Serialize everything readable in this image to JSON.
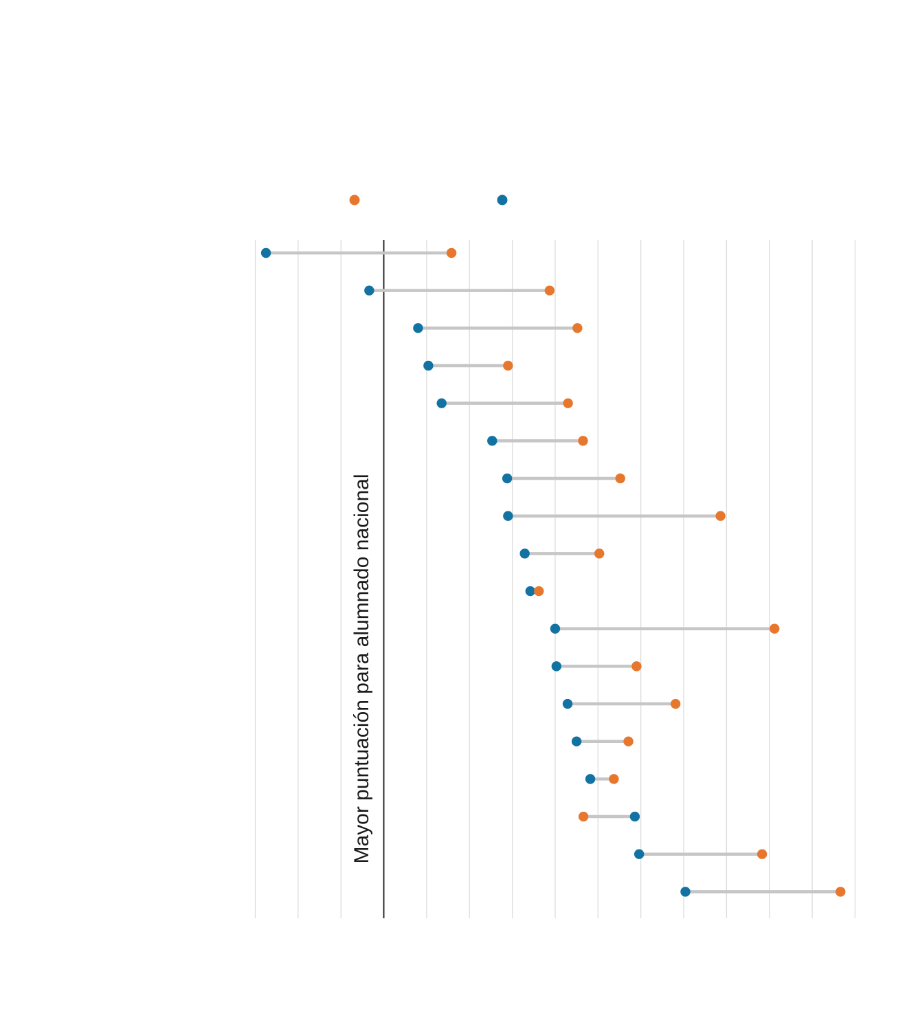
{
  "chart_data": {
    "type": "dumbbell",
    "title": "",
    "axis_label": "Mayor puntuación para alumnado nacional",
    "x_axis": {
      "tick_labels_visible": false,
      "gridline_count": 15,
      "baseline_gridline_index": 3,
      "units_per_gridline": 1,
      "range_units": [
        -3,
        11
      ],
      "grid_on": true
    },
    "legend": {
      "position": "top-center",
      "labels_visible": false,
      "items": [
        {
          "series": "orange",
          "marker": "dot"
        },
        {
          "series": "blue",
          "marker": "dot"
        }
      ]
    },
    "series": [
      {
        "name": "blue",
        "color": "#1272A2"
      },
      {
        "name": "orange",
        "color": "#E8772E"
      }
    ],
    "rows": [
      {
        "blue": -2.75,
        "orange": 1.58
      },
      {
        "blue": -0.34,
        "orange": 3.87
      },
      {
        "blue": 0.8,
        "orange": 4.52
      },
      {
        "blue": 1.04,
        "orange": 2.9
      },
      {
        "blue": 1.35,
        "orange": 4.3
      },
      {
        "blue": 2.53,
        "orange": 4.65
      },
      {
        "blue": 2.88,
        "orange": 5.52
      },
      {
        "blue": 2.9,
        "orange": 7.86
      },
      {
        "blue": 3.29,
        "orange": 5.03
      },
      {
        "blue": 3.42,
        "orange": 3.62
      },
      {
        "blue": 4.0,
        "orange": 9.12
      },
      {
        "blue": 4.03,
        "orange": 5.9
      },
      {
        "blue": 4.29,
        "orange": 6.81
      },
      {
        "blue": 4.5,
        "orange": 5.71
      },
      {
        "blue": 4.82,
        "orange": 5.37
      },
      {
        "blue": 5.86,
        "orange": 4.66
      },
      {
        "blue": 5.96,
        "orange": 8.83
      },
      {
        "blue": 7.04,
        "orange": 10.66
      }
    ]
  },
  "colors": {
    "blue": "#1272A2",
    "orange": "#E8772E",
    "gridline": "#DCDCDC",
    "baseline": "#1A1A1A",
    "connector": "#C6C6C6",
    "text": "#1A1A1A"
  }
}
